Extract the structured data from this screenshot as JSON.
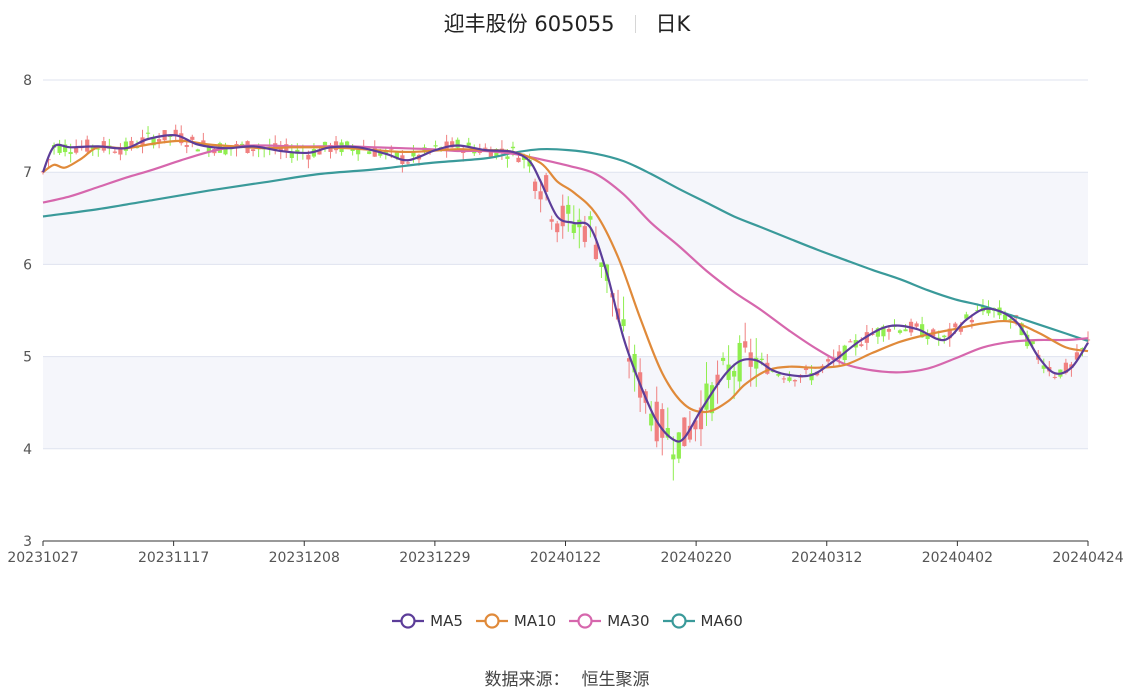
{
  "title": {
    "name": "迎丰股份",
    "code": "605055",
    "period": "日K"
  },
  "source": {
    "label": "数据来源：",
    "value": "恒生聚源"
  },
  "colors": {
    "up": "#f08080",
    "down": "#90ee50",
    "MA5": "#5c3d99",
    "MA10": "#e08a3a",
    "MA30": "#d667ad",
    "MA60": "#3a9a9a",
    "band": "#f5f6fb",
    "grid": "#dfe3ef",
    "axis": "#333333"
  },
  "chart_data": {
    "type": "candlestick",
    "ylim": [
      3,
      8
    ],
    "yticks": [
      3,
      4,
      5,
      6,
      7,
      8
    ],
    "xticks": [
      "20231027",
      "20231117",
      "20231208",
      "20231229",
      "20240122",
      "20240220",
      "20240312",
      "20240402",
      "20240424"
    ],
    "legend": [
      "MA5",
      "MA10",
      "MA30",
      "MA60"
    ],
    "ma": {
      "MA5": [
        [
          0,
          7.0
        ],
        [
          2,
          7.28
        ],
        [
          5,
          7.27
        ],
        [
          10,
          7.28
        ],
        [
          15,
          7.26
        ],
        [
          19,
          7.36
        ],
        [
          24,
          7.4
        ],
        [
          28,
          7.3
        ],
        [
          33,
          7.26
        ],
        [
          38,
          7.28
        ],
        [
          43,
          7.23
        ],
        [
          48,
          7.21
        ],
        [
          52,
          7.27
        ],
        [
          57,
          7.27
        ],
        [
          62,
          7.2
        ],
        [
          66,
          7.13
        ],
        [
          71,
          7.24
        ],
        [
          75,
          7.29
        ],
        [
          80,
          7.24
        ],
        [
          85,
          7.22
        ],
        [
          88,
          7.12
        ],
        [
          90,
          6.9
        ],
        [
          93,
          6.52
        ],
        [
          96,
          6.45
        ],
        [
          99,
          6.4
        ],
        [
          102,
          5.9
        ],
        [
          105,
          5.2
        ],
        [
          108,
          4.7
        ],
        [
          111,
          4.3
        ],
        [
          114,
          4.1
        ],
        [
          116,
          4.12
        ],
        [
          119,
          4.42
        ],
        [
          123,
          4.78
        ],
        [
          126,
          4.95
        ],
        [
          129,
          4.96
        ],
        [
          132,
          4.85
        ],
        [
          135,
          4.8
        ],
        [
          139,
          4.8
        ],
        [
          143,
          4.95
        ],
        [
          148,
          5.18
        ],
        [
          153,
          5.33
        ],
        [
          158,
          5.3
        ],
        [
          163,
          5.18
        ],
        [
          167,
          5.4
        ],
        [
          171,
          5.52
        ],
        [
          176,
          5.38
        ],
        [
          180,
          5.0
        ],
        [
          183,
          4.82
        ],
        [
          186,
          4.88
        ],
        [
          189,
          5.15
        ]
      ],
      "MA10": [
        [
          0,
          7.0
        ],
        [
          2,
          7.08
        ],
        [
          4,
          7.05
        ],
        [
          7,
          7.15
        ],
        [
          10,
          7.27
        ],
        [
          15,
          7.26
        ],
        [
          20,
          7.31
        ],
        [
          25,
          7.34
        ],
        [
          30,
          7.3
        ],
        [
          35,
          7.28
        ],
        [
          40,
          7.26
        ],
        [
          45,
          7.27
        ],
        [
          50,
          7.27
        ],
        [
          55,
          7.26
        ],
        [
          60,
          7.24
        ],
        [
          65,
          7.22
        ],
        [
          70,
          7.23
        ],
        [
          75,
          7.25
        ],
        [
          80,
          7.24
        ],
        [
          85,
          7.22
        ],
        [
          90,
          7.1
        ],
        [
          93,
          6.9
        ],
        [
          96,
          6.78
        ],
        [
          100,
          6.55
        ],
        [
          104,
          6.08
        ],
        [
          108,
          5.42
        ],
        [
          112,
          4.82
        ],
        [
          116,
          4.48
        ],
        [
          120,
          4.4
        ],
        [
          124,
          4.52
        ],
        [
          127,
          4.7
        ],
        [
          131,
          4.85
        ],
        [
          135,
          4.89
        ],
        [
          140,
          4.88
        ],
        [
          145,
          4.91
        ],
        [
          150,
          5.04
        ],
        [
          155,
          5.16
        ],
        [
          160,
          5.24
        ],
        [
          165,
          5.3
        ],
        [
          170,
          5.36
        ],
        [
          175,
          5.38
        ],
        [
          180,
          5.26
        ],
        [
          185,
          5.1
        ],
        [
          189,
          5.06
        ]
      ],
      "MA30": [
        [
          0,
          6.67
        ],
        [
          5,
          6.74
        ],
        [
          10,
          6.84
        ],
        [
          15,
          6.94
        ],
        [
          20,
          7.03
        ],
        [
          25,
          7.13
        ],
        [
          30,
          7.22
        ],
        [
          35,
          7.28
        ],
        [
          40,
          7.29
        ],
        [
          45,
          7.28
        ],
        [
          50,
          7.28
        ],
        [
          55,
          7.28
        ],
        [
          60,
          7.27
        ],
        [
          65,
          7.26
        ],
        [
          70,
          7.25
        ],
        [
          75,
          7.23
        ],
        [
          80,
          7.23
        ],
        [
          85,
          7.2
        ],
        [
          90,
          7.14
        ],
        [
          95,
          7.07
        ],
        [
          100,
          6.98
        ],
        [
          105,
          6.76
        ],
        [
          110,
          6.45
        ],
        [
          115,
          6.2
        ],
        [
          120,
          5.93
        ],
        [
          125,
          5.7
        ],
        [
          130,
          5.5
        ],
        [
          135,
          5.28
        ],
        [
          140,
          5.08
        ],
        [
          145,
          4.92
        ],
        [
          150,
          4.85
        ],
        [
          155,
          4.83
        ],
        [
          160,
          4.87
        ],
        [
          165,
          4.98
        ],
        [
          170,
          5.1
        ],
        [
          175,
          5.16
        ],
        [
          180,
          5.18
        ],
        [
          185,
          5.18
        ],
        [
          189,
          5.2
        ]
      ],
      "MA60": [
        [
          0,
          6.52
        ],
        [
          10,
          6.6
        ],
        [
          20,
          6.7
        ],
        [
          30,
          6.8
        ],
        [
          40,
          6.89
        ],
        [
          50,
          6.98
        ],
        [
          60,
          7.03
        ],
        [
          70,
          7.1
        ],
        [
          80,
          7.15
        ],
        [
          85,
          7.21
        ],
        [
          90,
          7.25
        ],
        [
          95,
          7.24
        ],
        [
          100,
          7.2
        ],
        [
          105,
          7.12
        ],
        [
          110,
          6.98
        ],
        [
          115,
          6.82
        ],
        [
          120,
          6.67
        ],
        [
          125,
          6.52
        ],
        [
          130,
          6.4
        ],
        [
          135,
          6.28
        ],
        [
          140,
          6.16
        ],
        [
          145,
          6.05
        ],
        [
          150,
          5.94
        ],
        [
          155,
          5.84
        ],
        [
          160,
          5.72
        ],
        [
          165,
          5.62
        ],
        [
          170,
          5.55
        ],
        [
          175,
          5.45
        ],
        [
          180,
          5.35
        ],
        [
          185,
          5.25
        ],
        [
          189,
          5.17
        ]
      ]
    }
  }
}
